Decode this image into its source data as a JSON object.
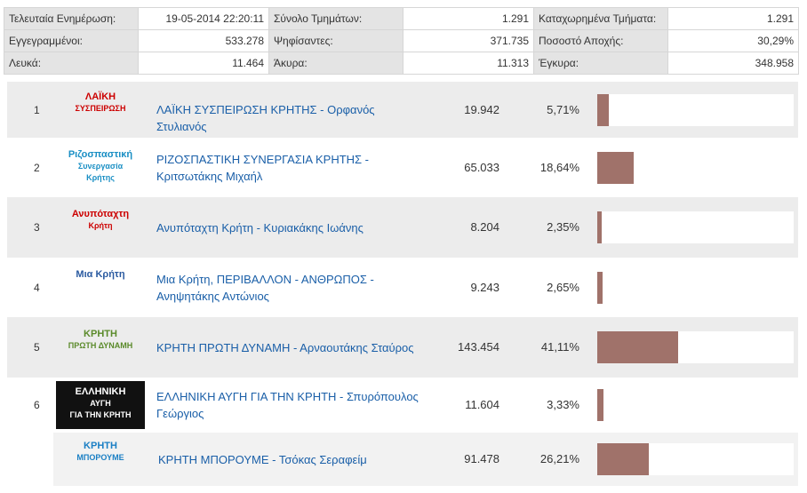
{
  "summary": {
    "rows": [
      [
        "Τελευταία Ενημέρωση:",
        "19-05-2014 22:20:11",
        "Σύνολο Τμημάτων:",
        "1.291",
        "Καταχωρημένα Τμήματα:",
        "1.291"
      ],
      [
        "Εγγεγραμμένοι:",
        "533.278",
        "Ψηφίσαντες:",
        "371.735",
        "Ποσοστό Αποχής:",
        "30,29%"
      ],
      [
        "Λευκά:",
        "11.464",
        "Άκυρα:",
        "11.313",
        "Έγκυρα:",
        "348.958"
      ]
    ]
  },
  "parties": [
    {
      "rank": "1",
      "logo": [
        "ΛΑΪΚΗ",
        "ΣΥΣΠΕΙΡΩΣΗ"
      ],
      "name": "ΛΑΪΚΗ ΣΥΣΠΕΙΡΩΣΗ ΚΡΗΤΗΣ - Ορφανός Στυλιανός",
      "votes": "19.942",
      "percent": 5.71,
      "percent_label": "5,71%"
    },
    {
      "rank": "2",
      "logo": [
        "Ριζοσπαστική",
        "Συνεργασία",
        "Κρήτης"
      ],
      "name": "ΡΙΖΟΣΠΑΣΤΙΚΗ ΣΥΝΕΡΓΑΣΙΑ ΚΡΗΤΗΣ - Κριτσωτάκης Μιχαήλ",
      "votes": "65.033",
      "percent": 18.64,
      "percent_label": "18,64%"
    },
    {
      "rank": "3",
      "logo": [
        "Ανυπόταχτη",
        "Κρήτη"
      ],
      "name": "Ανυπόταχτη Κρήτη - Κυριακάκης Ιωάνης",
      "votes": "8.204",
      "percent": 2.35,
      "percent_label": "2,35%"
    },
    {
      "rank": "4",
      "logo": [
        "Μια Κρήτη"
      ],
      "name": "Μια Κρήτη, ΠΕΡΙΒΑΛΛΟΝ - ΑΝΘΡΩΠΟΣ - Ανηψητάκης Αντώνιος",
      "votes": "9.243",
      "percent": 2.65,
      "percent_label": "2,65%"
    },
    {
      "rank": "5",
      "logo": [
        "ΚΡΗΤΗ",
        "ΠΡΩΤΗ ΔΥΝΑΜΗ"
      ],
      "name": "ΚΡΗΤΗ ΠΡΩΤΗ ΔΥΝΑΜΗ - Αρναουτάκης Σταύρος",
      "votes": "143.454",
      "percent": 41.11,
      "percent_label": "41,11%"
    },
    {
      "rank": "6",
      "logo": [
        "ΕΛΛΗΝΙΚΗ",
        "ΑΥΓΗ",
        "ΓΙΑ ΤΗΝ ΚΡΗΤΗ"
      ],
      "name": "ΕΛΛΗΝΙΚΗ ΑΥΓΗ ΓΙΑ ΤΗΝ ΚΡΗΤΗ - Σπυρόπουλος Γεώργιος",
      "votes": "11.604",
      "percent": 3.33,
      "percent_label": "3,33%"
    },
    {
      "logo": [
        "ΚΡΗΤΗ",
        "ΜΠΟΡΟΥΜΕ"
      ],
      "name": "ΚΡΗΤΗ ΜΠΟΡΟΥΜΕ - Τσόκας Σεραφείμ",
      "votes": "91.478",
      "percent": 26.21,
      "percent_label": "26,21%"
    }
  ]
}
